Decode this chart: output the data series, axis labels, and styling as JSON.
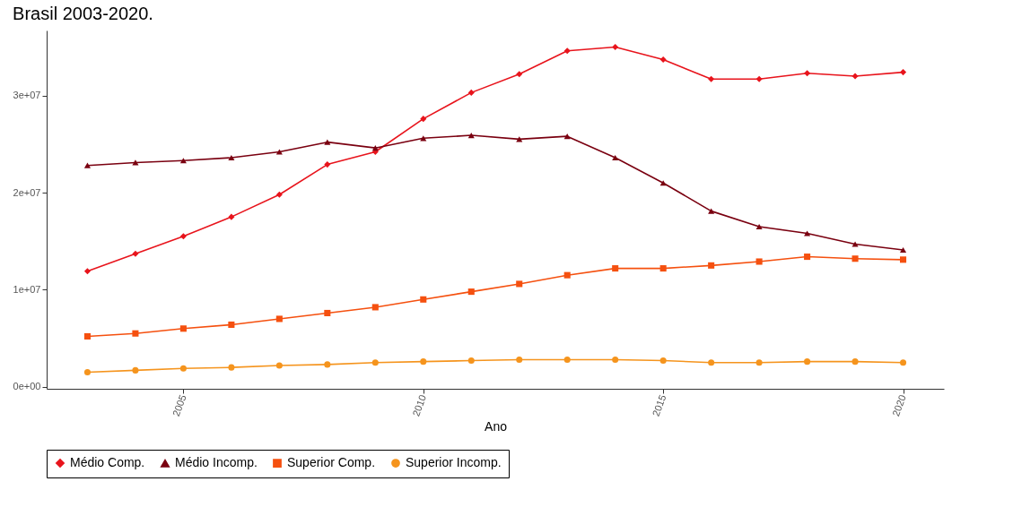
{
  "chart_data": {
    "type": "line",
    "title": "Brasil 2003-2020.",
    "xlabel": "Ano",
    "x": [
      2003,
      2004,
      2005,
      2006,
      2007,
      2008,
      2009,
      2010,
      2011,
      2012,
      2013,
      2014,
      2015,
      2016,
      2017,
      2018,
      2019,
      2020
    ],
    "series": [
      {
        "name": "Médio Comp.",
        "color": "#e8141c",
        "marker": "diamond",
        "values": [
          11900000,
          13700000,
          15500000,
          17500000,
          19800000,
          22900000,
          24200000,
          27600000,
          30300000,
          32200000,
          34600000,
          35000000,
          33700000,
          31700000,
          31700000,
          32300000,
          32000000,
          32400000
        ]
      },
      {
        "name": "Médio Incomp.",
        "color": "#7a0010",
        "marker": "triangle",
        "values": [
          22800000,
          23100000,
          23300000,
          23600000,
          24200000,
          25200000,
          24600000,
          25600000,
          25900000,
          25500000,
          25800000,
          23600000,
          21000000,
          18100000,
          16500000,
          15800000,
          14700000,
          14100000
        ]
      },
      {
        "name": "Superior Comp.",
        "color": "#f5500f",
        "marker": "square",
        "values": [
          5200000,
          5500000,
          6000000,
          6400000,
          7000000,
          7600000,
          8200000,
          9000000,
          9800000,
          10600000,
          11500000,
          12200000,
          12200000,
          12500000,
          12900000,
          13400000,
          13200000,
          13100000
        ]
      },
      {
        "name": "Superior Incomp.",
        "color": "#f5941d",
        "marker": "circle",
        "values": [
          1500000,
          1700000,
          1900000,
          2000000,
          2200000,
          2300000,
          2500000,
          2600000,
          2700000,
          2800000,
          2800000,
          2800000,
          2700000,
          2500000,
          2500000,
          2600000,
          2600000,
          2500000
        ]
      }
    ],
    "xlim": [
      2002.15,
      2020.85
    ],
    "xticks": [
      2005,
      2010,
      2015,
      2020
    ],
    "ylim": [
      -200000,
      36700000
    ],
    "yticks": [
      {
        "value": 0,
        "label": "0e+00"
      },
      {
        "value": 10000000,
        "label": "1e+07"
      },
      {
        "value": 20000000,
        "label": "2e+07"
      },
      {
        "value": 30000000,
        "label": "3e+07"
      }
    ],
    "grid": false,
    "legend": "bottom",
    "line_style": "solid"
  }
}
